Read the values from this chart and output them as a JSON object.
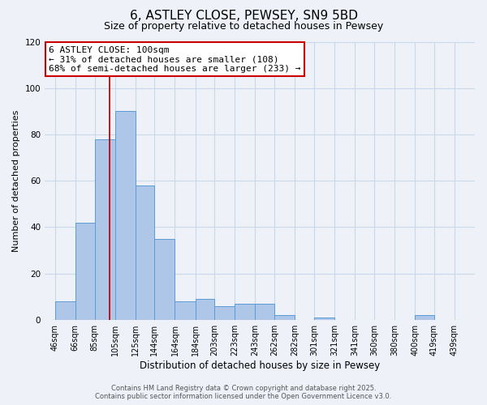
{
  "title": "6, ASTLEY CLOSE, PEWSEY, SN9 5BD",
  "subtitle": "Size of property relative to detached houses in Pewsey",
  "xlabel": "Distribution of detached houses by size in Pewsey",
  "ylabel": "Number of detached properties",
  "bar_left_edges": [
    46,
    66,
    85,
    105,
    125,
    144,
    164,
    184,
    203,
    223,
    243,
    262,
    282,
    301,
    321,
    341,
    360,
    380,
    400,
    419
  ],
  "bar_widths": [
    20,
    19,
    20,
    20,
    19,
    20,
    20,
    19,
    20,
    20,
    19,
    20,
    19,
    20,
    20,
    19,
    19,
    20,
    19,
    20
  ],
  "bar_heights": [
    8,
    42,
    78,
    90,
    58,
    35,
    8,
    9,
    6,
    7,
    7,
    2,
    0,
    1,
    0,
    0,
    0,
    0,
    2,
    0
  ],
  "tick_labels": [
    "46sqm",
    "66sqm",
    "85sqm",
    "105sqm",
    "125sqm",
    "144sqm",
    "164sqm",
    "184sqm",
    "203sqm",
    "223sqm",
    "243sqm",
    "262sqm",
    "282sqm",
    "301sqm",
    "321sqm",
    "341sqm",
    "360sqm",
    "380sqm",
    "400sqm",
    "419sqm",
    "439sqm"
  ],
  "tick_positions": [
    46,
    66,
    85,
    105,
    125,
    144,
    164,
    184,
    203,
    223,
    243,
    262,
    282,
    301,
    321,
    341,
    360,
    380,
    400,
    419,
    439
  ],
  "bar_color": "#aec6e8",
  "bar_edge_color": "#5b9bd5",
  "vline_x": 100,
  "vline_color": "#cc0000",
  "annotation_line1": "6 ASTLEY CLOSE: 100sqm",
  "annotation_line2": "← 31% of detached houses are smaller (108)",
  "annotation_line3": "68% of semi-detached houses are larger (233) →",
  "ylim": [
    0,
    120
  ],
  "yticks": [
    0,
    20,
    40,
    60,
    80,
    100,
    120
  ],
  "xlim": [
    36,
    459
  ],
  "grid_color": "#c8d8ea",
  "background_color": "#eef2f8",
  "footer1": "Contains HM Land Registry data © Crown copyright and database right 2025.",
  "footer2": "Contains public sector information licensed under the Open Government Licence v3.0.",
  "title_fontsize": 11,
  "subtitle_fontsize": 9,
  "axis_label_fontsize": 8.5,
  "tick_fontsize": 7,
  "annotation_fontsize": 8,
  "footer_fontsize": 6,
  "ylabel_fontsize": 8
}
